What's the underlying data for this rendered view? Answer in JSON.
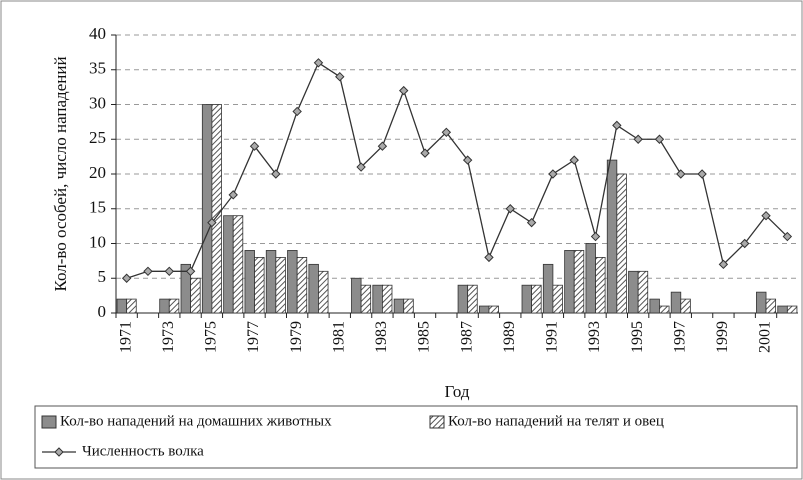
{
  "chart_data": {
    "type": "bar_line",
    "ylabel": "Кол-во особей, число нападений",
    "xlabel": "Год",
    "categories": [
      "1971",
      null,
      "1973",
      null,
      "1975",
      null,
      "1977",
      null,
      "1979",
      null,
      "1981",
      null,
      "1983",
      null,
      "1985",
      null,
      "1987",
      null,
      "1989",
      null,
      "1991",
      null,
      "1993",
      null,
      "1995",
      null,
      "1997",
      null,
      "1999",
      null,
      "2001",
      null
    ],
    "series": [
      {
        "name": "Кол-во нападений на домашних животных",
        "kind": "bar",
        "color": "#8c8c8c",
        "values": [
          2,
          0,
          2,
          7,
          30,
          14,
          9,
          9,
          9,
          7,
          0,
          5,
          4,
          2,
          0,
          0,
          4,
          1,
          0,
          4,
          7,
          9,
          10,
          22,
          6,
          2,
          3,
          0,
          0,
          0,
          3,
          1
        ]
      },
      {
        "name": "Кол-во нападений на телят и овец",
        "kind": "bar",
        "color": "#555555",
        "values": [
          2,
          0,
          2,
          5,
          30,
          14,
          8,
          8,
          8,
          6,
          0,
          4,
          4,
          2,
          0,
          0,
          4,
          1,
          0,
          4,
          4,
          9,
          8,
          20,
          6,
          1,
          2,
          0,
          0,
          0,
          2,
          1
        ]
      },
      {
        "name": "Численность волка",
        "kind": "line",
        "color": "#333333",
        "values": [
          5,
          6,
          6,
          6,
          13,
          17,
          24,
          20,
          29,
          36,
          34,
          21,
          24,
          32,
          23,
          26,
          22,
          8,
          15,
          13,
          20,
          22,
          11,
          27,
          25,
          25,
          20,
          20,
          7,
          10,
          14,
          11
        ]
      }
    ],
    "ylim": [
      0,
      40
    ],
    "yticks": [
      0,
      5,
      10,
      15,
      20,
      25,
      30,
      35,
      40
    ],
    "grid": true,
    "legend": "bottom"
  }
}
